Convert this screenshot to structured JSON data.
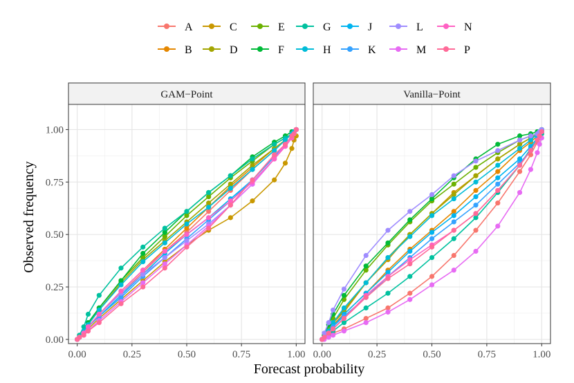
{
  "chart_data": {
    "type": "line",
    "xlabel": "Forecast probability",
    "ylabel": "Observed frequency",
    "xlim": [
      -0.04,
      1.04
    ],
    "ylim": [
      -0.02,
      1.12
    ],
    "x_ticks": [
      0,
      0.25,
      0.5,
      0.75,
      1
    ],
    "x_tick_labels": [
      "0.00",
      "0.25",
      "0.50",
      "0.75",
      "1.00"
    ],
    "y_ticks": [
      0,
      0.25,
      0.5,
      0.75,
      1
    ],
    "y_tick_labels": [
      "0.00",
      "0.25",
      "0.50",
      "0.75",
      "1.00"
    ],
    "legend_position": "top",
    "x": [
      0,
      0.01,
      0.03,
      0.05,
      0.1,
      0.2,
      0.3,
      0.4,
      0.5,
      0.6,
      0.7,
      0.8,
      0.9,
      0.95,
      0.98,
      0.99,
      1.0
    ],
    "series": [
      {
        "name": "A",
        "color": "#F8766D"
      },
      {
        "name": "B",
        "color": "#E58700"
      },
      {
        "name": "C",
        "color": "#C99800"
      },
      {
        "name": "D",
        "color": "#A3A500"
      },
      {
        "name": "E",
        "color": "#6BB100"
      },
      {
        "name": "F",
        "color": "#00BA38"
      },
      {
        "name": "G",
        "color": "#00C19F"
      },
      {
        "name": "H",
        "color": "#00BCD8"
      },
      {
        "name": "J",
        "color": "#00B4F0"
      },
      {
        "name": "K",
        "color": "#35A2FF"
      },
      {
        "name": "L",
        "color": "#9F8CFF"
      },
      {
        "name": "M",
        "color": "#E76BF3"
      },
      {
        "name": "N",
        "color": "#FF61C3"
      },
      {
        "name": "P",
        "color": "#FF6A98"
      }
    ],
    "panels": [
      {
        "title": "GAM−Point",
        "values": {
          "A": [
            0,
            0.01,
            0.03,
            0.06,
            0.12,
            0.22,
            0.32,
            0.42,
            0.51,
            0.61,
            0.71,
            0.81,
            0.9,
            0.95,
            0.98,
            0.99,
            1.0
          ],
          "B": [
            0,
            0.01,
            0.03,
            0.06,
            0.12,
            0.23,
            0.33,
            0.43,
            0.53,
            0.63,
            0.73,
            0.82,
            0.91,
            0.95,
            0.98,
            0.99,
            1.0
          ],
          "C": [
            0,
            0.01,
            0.03,
            0.05,
            0.1,
            0.19,
            0.28,
            0.37,
            0.45,
            0.52,
            0.58,
            0.66,
            0.76,
            0.84,
            0.91,
            0.95,
            0.97
          ],
          "D": [
            0,
            0.01,
            0.03,
            0.07,
            0.14,
            0.27,
            0.38,
            0.47,
            0.56,
            0.65,
            0.74,
            0.83,
            0.91,
            0.95,
            0.98,
            0.99,
            1.0
          ],
          "E": [
            0,
            0.01,
            0.04,
            0.07,
            0.15,
            0.28,
            0.39,
            0.49,
            0.59,
            0.68,
            0.77,
            0.85,
            0.93,
            0.96,
            0.98,
            0.99,
            1.0
          ],
          "F": [
            0,
            0.01,
            0.04,
            0.08,
            0.15,
            0.28,
            0.41,
            0.51,
            0.61,
            0.7,
            0.78,
            0.87,
            0.94,
            0.97,
            0.99,
            0.99,
            1.0
          ],
          "G": [
            0,
            0.02,
            0.06,
            0.12,
            0.21,
            0.34,
            0.44,
            0.53,
            0.61,
            0.7,
            0.78,
            0.86,
            0.93,
            0.96,
            0.98,
            0.99,
            1.0
          ],
          "H": [
            0,
            0.01,
            0.04,
            0.07,
            0.14,
            0.26,
            0.37,
            0.46,
            0.55,
            0.63,
            0.72,
            0.81,
            0.9,
            0.95,
            0.98,
            0.99,
            1.0
          ],
          "J": [
            0,
            0.01,
            0.03,
            0.06,
            0.11,
            0.21,
            0.31,
            0.41,
            0.5,
            0.58,
            0.67,
            0.76,
            0.87,
            0.93,
            0.97,
            0.98,
            1.0
          ],
          "K": [
            0,
            0.01,
            0.03,
            0.06,
            0.11,
            0.2,
            0.3,
            0.39,
            0.48,
            0.57,
            0.66,
            0.76,
            0.87,
            0.93,
            0.97,
            0.98,
            1.0
          ],
          "L": [
            0,
            0.01,
            0.03,
            0.06,
            0.12,
            0.22,
            0.31,
            0.39,
            0.47,
            0.55,
            0.64,
            0.74,
            0.86,
            0.92,
            0.96,
            0.98,
            1.0
          ],
          "M": [
            0,
            0.01,
            0.02,
            0.04,
            0.09,
            0.18,
            0.27,
            0.36,
            0.45,
            0.54,
            0.64,
            0.74,
            0.86,
            0.93,
            0.97,
            0.98,
            1.0
          ],
          "N": [
            0,
            0.01,
            0.03,
            0.06,
            0.12,
            0.23,
            0.33,
            0.42,
            0.5,
            0.58,
            0.66,
            0.75,
            0.86,
            0.92,
            0.96,
            0.98,
            1.0
          ],
          "P": [
            0,
            0.01,
            0.02,
            0.04,
            0.08,
            0.17,
            0.25,
            0.34,
            0.44,
            0.53,
            0.64,
            0.76,
            0.88,
            0.93,
            0.97,
            0.98,
            1.0
          ]
        }
      },
      {
        "title": "Vanilla−Point",
        "values": {
          "A": [
            0,
            0.01,
            0.02,
            0.03,
            0.05,
            0.1,
            0.15,
            0.22,
            0.3,
            0.4,
            0.52,
            0.65,
            0.8,
            0.88,
            0.94,
            0.96,
            0.98
          ],
          "B": [
            0,
            0.01,
            0.04,
            0.07,
            0.12,
            0.22,
            0.33,
            0.43,
            0.52,
            0.61,
            0.71,
            0.8,
            0.9,
            0.94,
            0.97,
            0.98,
            0.99
          ],
          "C": [
            0,
            0.01,
            0.04,
            0.08,
            0.13,
            0.27,
            0.38,
            0.5,
            0.6,
            0.7,
            0.78,
            0.86,
            0.93,
            0.96,
            0.98,
            0.99,
            1.0
          ],
          "D": [
            0,
            0.01,
            0.04,
            0.08,
            0.14,
            0.27,
            0.39,
            0.5,
            0.6,
            0.69,
            0.78,
            0.86,
            0.93,
            0.96,
            0.98,
            0.99,
            1.0
          ],
          "E": [
            0,
            0.02,
            0.05,
            0.1,
            0.19,
            0.33,
            0.45,
            0.56,
            0.66,
            0.74,
            0.82,
            0.89,
            0.95,
            0.97,
            0.98,
            0.99,
            1.0
          ],
          "F": [
            0,
            0.02,
            0.07,
            0.12,
            0.21,
            0.35,
            0.46,
            0.57,
            0.67,
            0.77,
            0.86,
            0.93,
            0.97,
            0.98,
            0.99,
            0.99,
            1.0
          ],
          "G": [
            0,
            0.01,
            0.02,
            0.04,
            0.08,
            0.15,
            0.22,
            0.3,
            0.39,
            0.48,
            0.58,
            0.7,
            0.83,
            0.91,
            0.95,
            0.97,
            0.98
          ],
          "H": [
            0,
            0.01,
            0.04,
            0.08,
            0.15,
            0.27,
            0.39,
            0.49,
            0.59,
            0.67,
            0.75,
            0.83,
            0.91,
            0.95,
            0.98,
            0.99,
            1.0
          ],
          "J": [
            0,
            0.01,
            0.03,
            0.06,
            0.12,
            0.22,
            0.32,
            0.42,
            0.51,
            0.59,
            0.68,
            0.77,
            0.86,
            0.92,
            0.96,
            0.98,
            0.99
          ],
          "K": [
            0,
            0.01,
            0.03,
            0.06,
            0.11,
            0.2,
            0.3,
            0.39,
            0.48,
            0.56,
            0.64,
            0.74,
            0.84,
            0.9,
            0.95,
            0.97,
            0.99
          ],
          "L": [
            0,
            0.03,
            0.08,
            0.14,
            0.24,
            0.4,
            0.52,
            0.61,
            0.69,
            0.78,
            0.85,
            0.9,
            0.95,
            0.97,
            0.98,
            0.99,
            1.0
          ],
          "M": [
            0,
            0.0,
            0.01,
            0.02,
            0.04,
            0.08,
            0.13,
            0.19,
            0.26,
            0.33,
            0.42,
            0.54,
            0.7,
            0.81,
            0.89,
            0.93,
            0.96
          ],
          "N": [
            0,
            0.01,
            0.03,
            0.05,
            0.1,
            0.21,
            0.3,
            0.38,
            0.45,
            0.52,
            0.6,
            0.71,
            0.83,
            0.9,
            0.95,
            0.97,
            0.99
          ],
          "P": [
            0,
            0.01,
            0.03,
            0.05,
            0.1,
            0.2,
            0.29,
            0.36,
            0.44,
            0.52,
            0.6,
            0.71,
            0.83,
            0.9,
            0.95,
            0.97,
            0.99
          ]
        }
      }
    ]
  }
}
